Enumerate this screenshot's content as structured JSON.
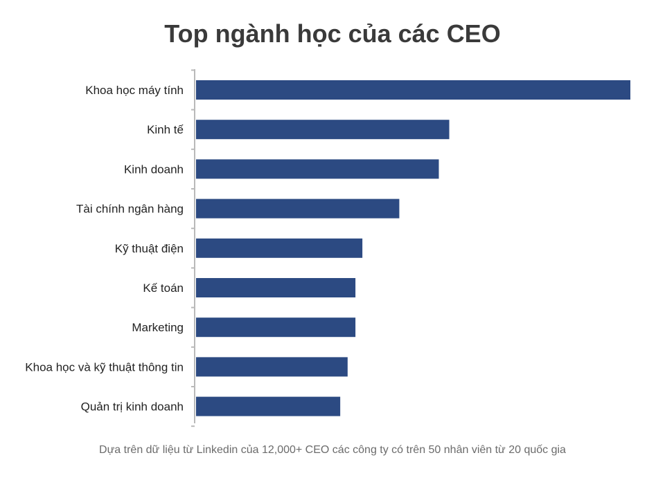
{
  "title": "Top ngành học của các CEO",
  "footnote": "Dựa trên dữ liệu từ Linkedin của 12,000+ CEO các công ty có trên 50 nhân viên từ 20 quốc gia",
  "colors": {
    "bar": "#2c4a82",
    "axis": "#b9b9b9",
    "label": "#222222"
  },
  "chart_data": {
    "type": "bar",
    "orientation": "horizontal",
    "categories": [
      "Khoa học máy tính",
      "Kinh tế",
      "Kinh doanh",
      "Tài chính ngân hàng",
      "Kỹ thuật điện",
      "Kế toán",
      "Marketing",
      "Khoa học và kỹ thuật thông tin",
      "Quản trị kinh doanh"
    ],
    "values": [
      100,
      58.3,
      55.9,
      46.8,
      38.3,
      36.7,
      36.7,
      34.9,
      33.2
    ],
    "xlim": [
      0,
      100
    ],
    "grid": false,
    "legend": "none"
  }
}
